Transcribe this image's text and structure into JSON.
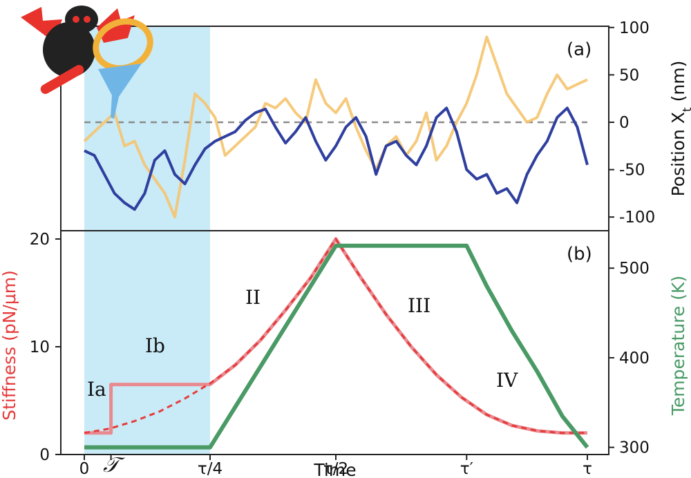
{
  "colors": {
    "shade": "#c9ebf7",
    "trace_blue": "#2f3f9f",
    "trace_orange": "#f5c46f",
    "zero_line": "#8a8a8a",
    "stiffness": "#e63b3b",
    "stiffness_light": "#e98a90",
    "temperature": "#4a9a66"
  },
  "chart_data": [
    {
      "panel": "(a)",
      "type": "line",
      "ylabel": "Position X",
      "ylabel_sub": "t",
      "ylabel_unit": " (nm)",
      "y_ticks": [
        "100",
        "50",
        "0",
        "-50",
        "-100"
      ],
      "ylim": [
        -105,
        100
      ],
      "reference_line": 0,
      "shaded_region": "0 to τ/4",
      "series": [
        {
          "color": "#2f3f9f",
          "x": [
            0,
            0.02,
            0.04,
            0.06,
            0.08,
            0.1,
            0.12,
            0.14,
            0.16,
            0.18,
            0.2,
            0.22,
            0.24,
            0.26,
            0.28,
            0.3,
            0.32,
            0.34,
            0.36,
            0.38,
            0.4,
            0.42,
            0.44,
            0.46,
            0.48,
            0.5,
            0.52,
            0.54,
            0.56,
            0.58,
            0.6,
            0.62,
            0.64,
            0.66,
            0.68,
            0.7,
            0.72,
            0.74,
            0.76,
            0.78,
            0.8,
            0.82,
            0.84,
            0.86,
            0.88,
            0.9,
            0.92,
            0.94,
            0.96,
            0.98,
            1.0
          ],
          "y": [
            -30,
            -35,
            -55,
            -75,
            -85,
            -92,
            -75,
            -40,
            -30,
            -55,
            -65,
            -45,
            -28,
            -20,
            -15,
            -10,
            2,
            10,
            14,
            -5,
            -22,
            -10,
            5,
            -20,
            -40,
            -25,
            -5,
            5,
            -15,
            -55,
            -25,
            -20,
            -35,
            -45,
            -25,
            5,
            15,
            -10,
            -50,
            -60,
            -55,
            -75,
            -70,
            -85,
            -55,
            -35,
            -20,
            5,
            15,
            -5,
            -45
          ]
        },
        {
          "color": "#f5c46f",
          "x": [
            0,
            0.02,
            0.04,
            0.06,
            0.08,
            0.1,
            0.12,
            0.14,
            0.16,
            0.18,
            0.2,
            0.22,
            0.24,
            0.26,
            0.28,
            0.3,
            0.32,
            0.34,
            0.36,
            0.38,
            0.4,
            0.42,
            0.44,
            0.46,
            0.48,
            0.5,
            0.52,
            0.54,
            0.56,
            0.58,
            0.6,
            0.62,
            0.64,
            0.66,
            0.68,
            0.7,
            0.72,
            0.74,
            0.76,
            0.78,
            0.8,
            0.82,
            0.84,
            0.86,
            0.88,
            0.9,
            0.92,
            0.94,
            0.96,
            0.98,
            1.0
          ],
          "y": [
            -20,
            -10,
            0,
            10,
            -25,
            -20,
            -45,
            -60,
            -75,
            -100,
            -40,
            30,
            20,
            5,
            -35,
            -25,
            -15,
            -5,
            20,
            15,
            25,
            10,
            0,
            45,
            20,
            10,
            25,
            -5,
            -30,
            -50,
            -25,
            -15,
            -35,
            -20,
            10,
            -40,
            -25,
            0,
            20,
            50,
            90,
            60,
            30,
            15,
            0,
            5,
            30,
            50,
            35,
            40,
            45
          ]
        }
      ]
    },
    {
      "panel": "(b)",
      "type": "line",
      "xlabel": "Time",
      "ylabel": "Stiffness (pN/μm)",
      "ylabel2": "Temperature (K)",
      "x_ticks": [
        "0",
        "𝒯",
        "τ/4",
        "τ/2",
        "τ′",
        "τ"
      ],
      "y_ticks": [
        "20",
        "10",
        "0"
      ],
      "y2_ticks": [
        "500",
        "400",
        "300"
      ],
      "ylim": [
        0,
        20.5
      ],
      "y2lim": [
        292,
        531
      ],
      "region_labels": [
        "Ia",
        "Ib",
        "II",
        "III",
        "IV"
      ],
      "series": [
        {
          "kind": "stiffness_protocol",
          "color": "#e98a90",
          "x": [
            0,
            0.053,
            0.053,
            0.25,
            0.3,
            0.35,
            0.4,
            0.45,
            0.5,
            0.55,
            0.6,
            0.65,
            0.7,
            0.75,
            0.8,
            0.85,
            0.9,
            0.95,
            1.0
          ],
          "y": [
            2.0,
            2.0,
            6.5,
            6.5,
            8.3,
            10.6,
            13.4,
            16.4,
            20.0,
            16.4,
            13.0,
            10.0,
            7.4,
            5.3,
            3.7,
            2.7,
            2.2,
            2.0,
            2.0
          ]
        },
        {
          "kind": "stiffness_reference",
          "color": "#e63b3b",
          "x": [
            0,
            0.05,
            0.1,
            0.15,
            0.2,
            0.25,
            0.3,
            0.35,
            0.4,
            0.45,
            0.5,
            0.55,
            0.6,
            0.65,
            0.7,
            0.75,
            0.8,
            0.85,
            0.9,
            0.95,
            1.0
          ],
          "y": [
            2.0,
            2.4,
            3.1,
            4.0,
            5.2,
            6.6,
            8.3,
            10.6,
            13.4,
            16.4,
            20.0,
            16.4,
            13.0,
            10.0,
            7.4,
            5.3,
            3.7,
            2.7,
            2.2,
            2.0,
            2.0
          ]
        },
        {
          "kind": "temperature",
          "axis": "right",
          "color": "#4a9a66",
          "x": [
            0,
            0.25,
            0.5,
            0.76,
            0.8,
            0.85,
            0.9,
            0.95,
            1.0
          ],
          "y": [
            300,
            300,
            525,
            525,
            480,
            430,
            385,
            335,
            300
          ]
        }
      ]
    }
  ]
}
